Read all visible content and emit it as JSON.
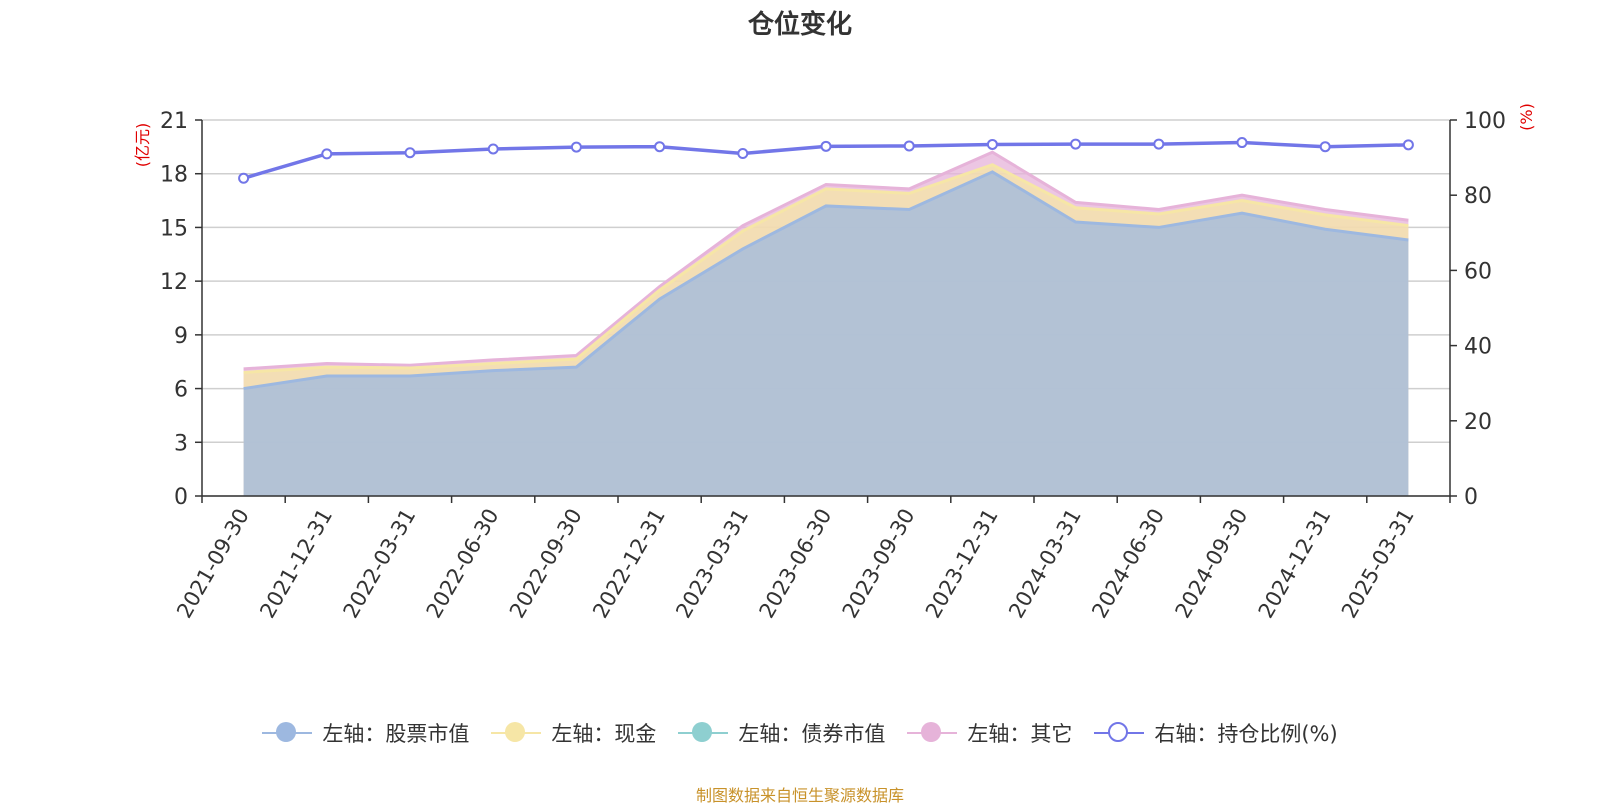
{
  "chart_data": {
    "type": "area",
    "title": "仓位变化",
    "left_axis": {
      "label": "(亿元)",
      "ylim": [
        0,
        21
      ],
      "ticks": [
        0,
        3,
        6,
        9,
        12,
        15,
        18,
        21
      ]
    },
    "right_axis": {
      "label": "(%)",
      "ylim": [
        0,
        100
      ],
      "ticks": [
        0,
        20,
        40,
        60,
        80,
        100
      ]
    },
    "categories": [
      "2021-09-30",
      "2021-12-31",
      "2022-03-31",
      "2022-06-30",
      "2022-09-30",
      "2022-12-31",
      "2023-03-31",
      "2023-06-30",
      "2023-09-30",
      "2023-12-31",
      "2024-03-31",
      "2024-06-30",
      "2024-09-30",
      "2024-12-31",
      "2025-03-31"
    ],
    "series": [
      {
        "name": "左轴：股票市值",
        "axis": "left",
        "stack": true,
        "color": "#9db8e0",
        "values": [
          6.0,
          6.7,
          6.7,
          7.0,
          7.2,
          11.0,
          13.8,
          16.2,
          16.0,
          18.1,
          15.3,
          15.0,
          15.8,
          14.9,
          14.3
        ]
      },
      {
        "name": "左轴：现金",
        "axis": "left",
        "stack": true,
        "color": "#f6e6a6",
        "values": [
          0.9,
          0.5,
          0.45,
          0.4,
          0.45,
          0.5,
          1.0,
          0.95,
          0.9,
          0.4,
          0.8,
          0.75,
          0.7,
          0.8,
          0.8
        ]
      },
      {
        "name": "左轴：债券市值",
        "axis": "left",
        "stack": true,
        "color": "#8ecfd0",
        "values": [
          0,
          0,
          0,
          0,
          0,
          0,
          0,
          0,
          0,
          0,
          0,
          0,
          0,
          0,
          0
        ]
      },
      {
        "name": "左轴：其它",
        "axis": "left",
        "stack": true,
        "color": "#e6b3d9",
        "values": [
          0.2,
          0.2,
          0.15,
          0.2,
          0.2,
          0.2,
          0.3,
          0.25,
          0.25,
          0.7,
          0.3,
          0.25,
          0.3,
          0.3,
          0.3
        ]
      },
      {
        "name": "右轴：持仓比例(%)",
        "axis": "right",
        "stack": false,
        "color": "#7276e8",
        "values": [
          84.5,
          91.0,
          91.3,
          92.3,
          92.8,
          92.9,
          91.1,
          93.0,
          93.1,
          93.5,
          93.6,
          93.6,
          94.0,
          92.9,
          93.4
        ]
      }
    ],
    "grid": true,
    "legend_position": "bottom"
  },
  "legend": [
    {
      "label": "左轴：股票市值",
      "color": "#9db8e0",
      "hollow": false
    },
    {
      "label": "左轴：现金",
      "color": "#f6e6a6",
      "hollow": false
    },
    {
      "label": "左轴：债券市值",
      "color": "#8ecfd0",
      "hollow": false
    },
    {
      "label": "左轴：其它",
      "color": "#e6b3d9",
      "hollow": false
    },
    {
      "label": "右轴：持仓比例(%)",
      "color": "#7276e8",
      "hollow": true
    }
  ],
  "source": "制图数据来自恒生聚源数据库"
}
